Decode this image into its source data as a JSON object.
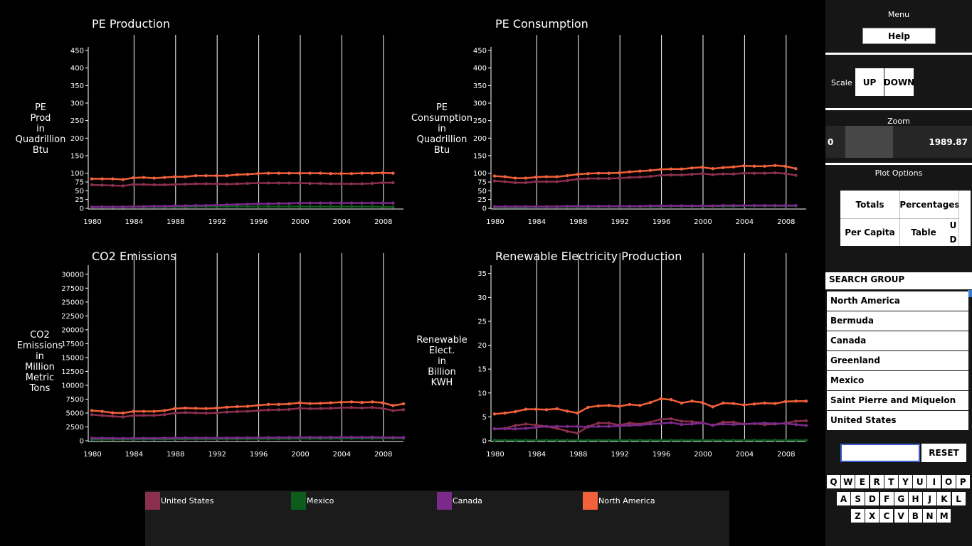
{
  "legend": [
    {
      "label": "United States",
      "color": "#8b2f4f"
    },
    {
      "label": "Mexico",
      "color": "#0c5c1c"
    },
    {
      "label": "Canada",
      "color": "#7a2a8a"
    },
    {
      "label": "North America",
      "color": "#f2613a"
    }
  ],
  "panel": {
    "menu_label": "Menu",
    "help_label": "Help",
    "scale_label": "Scale",
    "up_label": "UP",
    "down_label": "DOWN",
    "zoom_label": "Zoom",
    "zoom_min": "0",
    "zoom_max": "1989.87",
    "plot_options_label": "Plot Options",
    "options": {
      "totals": "Totals",
      "percentages": "Percentages",
      "per_capita": "Per Capita",
      "table": "Table",
      "u": "U",
      "d": "D"
    },
    "search_group_label": "SEARCH GROUP",
    "search_items": [
      "North America",
      "Bermuda",
      "Canada",
      "Greenland",
      "Mexico",
      "Saint Pierre and Miquelon",
      "United States"
    ],
    "search_value": "",
    "reset_label": "RESET",
    "keyboard_rows": [
      [
        "Q",
        "W",
        "E",
        "R",
        "T",
        "Y",
        "U",
        "I",
        "O",
        "P"
      ],
      [
        "A",
        "S",
        "D",
        "F",
        "G",
        "H",
        "J",
        "K",
        "L"
      ],
      [
        "Z",
        "X",
        "C",
        "V",
        "B",
        "N",
        "M"
      ]
    ]
  },
  "chart_data": [
    {
      "type": "line",
      "title": "PE Production",
      "ylabel": [
        "PE",
        "Prod",
        "in",
        "Quadrillion",
        "Btu"
      ],
      "xlim": [
        1980,
        2010
      ],
      "ylim": [
        0,
        450
      ],
      "yticks": [
        0,
        25,
        50,
        75,
        100,
        150,
        200,
        250,
        300,
        350,
        400,
        450
      ],
      "xticks": [
        1980,
        1984,
        1988,
        1992,
        1996,
        2000,
        2004,
        2008
      ],
      "x": [
        1980,
        1981,
        1982,
        1983,
        1984,
        1985,
        1986,
        1987,
        1988,
        1989,
        1990,
        1991,
        1992,
        1993,
        1994,
        1995,
        1996,
        1997,
        1998,
        1999,
        2000,
        2001,
        2002,
        2003,
        2004,
        2005,
        2006,
        2007,
        2008,
        2009
      ],
      "series": [
        {
          "name": "United States",
          "color": "#8b2f4f",
          "values": [
            67,
            66,
            65,
            64,
            68,
            68,
            67,
            67,
            68,
            69,
            70,
            70,
            70,
            69,
            70,
            71,
            72,
            72,
            72,
            72,
            72,
            71,
            71,
            70,
            70,
            70,
            70,
            71,
            73,
            73
          ]
        },
        {
          "name": "Mexico",
          "color": "#0c5c1c",
          "values": [
            3,
            4,
            4,
            4,
            4,
            4,
            4,
            4,
            4,
            4,
            5,
            5,
            5,
            5,
            5,
            5,
            5,
            5,
            5,
            5,
            5,
            5,
            5,
            5,
            5,
            5,
            5,
            5,
            4,
            4
          ]
        },
        {
          "name": "Canada",
          "color": "#7a2a8a",
          "values": [
            4,
            4,
            4,
            4,
            5,
            5,
            6,
            6,
            7,
            7,
            8,
            8,
            9,
            10,
            11,
            12,
            13,
            13,
            14,
            14,
            15,
            15,
            15,
            15,
            15,
            15,
            15,
            15,
            15,
            15
          ]
        },
        {
          "name": "North America",
          "color": "#f2613a",
          "values": [
            84,
            84,
            84,
            82,
            87,
            88,
            86,
            88,
            90,
            90,
            93,
            93,
            93,
            93,
            96,
            97,
            99,
            100,
            100,
            100,
            100,
            100,
            100,
            99,
            99,
            99,
            100,
            100,
            101,
            100
          ]
        }
      ]
    },
    {
      "type": "line",
      "title": "PE Consumption",
      "ylabel": [
        "PE",
        "Consumption",
        "in",
        "Quadrillion",
        "Btu"
      ],
      "xlim": [
        1980,
        2010
      ],
      "ylim": [
        0,
        450
      ],
      "yticks": [
        0,
        25,
        50,
        75,
        100,
        150,
        200,
        250,
        300,
        350,
        400,
        450
      ],
      "xticks": [
        1980,
        1984,
        1988,
        1992,
        1996,
        2000,
        2004,
        2008
      ],
      "x": [
        1980,
        1981,
        1982,
        1983,
        1984,
        1985,
        1986,
        1987,
        1988,
        1989,
        1990,
        1991,
        1992,
        1993,
        1994,
        1995,
        1996,
        1997,
        1998,
        1999,
        2000,
        2001,
        2002,
        2003,
        2004,
        2005,
        2006,
        2007,
        2008,
        2009
      ],
      "series": [
        {
          "name": "United States",
          "color": "#8b2f4f",
          "values": [
            78,
            76,
            73,
            73,
            76,
            76,
            76,
            79,
            83,
            85,
            85,
            85,
            86,
            88,
            89,
            91,
            94,
            95,
            95,
            97,
            99,
            96,
            98,
            98,
            100,
            100,
            100,
            101,
            99,
            94
          ]
        },
        {
          "name": "Mexico",
          "color": "#0c5c1c",
          "values": [
            3,
            3,
            3,
            3,
            4,
            4,
            4,
            4,
            4,
            4,
            5,
            5,
            5,
            5,
            5,
            5,
            5,
            6,
            6,
            6,
            6,
            6,
            6,
            6,
            7,
            7,
            7,
            7,
            7,
            7
          ]
        },
        {
          "name": "Canada",
          "color": "#7a2a8a",
          "values": [
            5,
            5,
            5,
            5,
            5,
            5,
            5,
            6,
            6,
            6,
            6,
            6,
            6,
            6,
            6,
            7,
            7,
            7,
            7,
            7,
            7,
            7,
            8,
            8,
            8,
            8,
            8,
            8,
            8,
            8
          ]
        },
        {
          "name": "North America",
          "color": "#f2613a",
          "values": [
            92,
            90,
            86,
            86,
            89,
            90,
            90,
            93,
            97,
            99,
            100,
            100,
            101,
            104,
            106,
            108,
            111,
            112,
            112,
            115,
            117,
            113,
            116,
            118,
            121,
            120,
            120,
            122,
            120,
            113
          ]
        }
      ]
    },
    {
      "type": "line",
      "title": "CO2 Emissions",
      "ylabel": [
        "CO2",
        "Emissions",
        "in",
        "Million",
        "Metric",
        "Tons"
      ],
      "xlim": [
        1980,
        2010
      ],
      "ylim": [
        0,
        31000
      ],
      "yticks": [
        0,
        2500,
        5000,
        7500,
        10000,
        12500,
        15000,
        17500,
        20000,
        22500,
        25000,
        27500,
        30000
      ],
      "xticks": [
        1980,
        1984,
        1988,
        1992,
        1996,
        2000,
        2004,
        2008
      ],
      "x": [
        1980,
        1981,
        1982,
        1983,
        1984,
        1985,
        1986,
        1987,
        1988,
        1989,
        1990,
        1991,
        1992,
        1993,
        1994,
        1995,
        1996,
        1997,
        1998,
        1999,
        2000,
        2001,
        2002,
        2003,
        2004,
        2005,
        2006,
        2007,
        2008,
        2009,
        2010
      ],
      "series": [
        {
          "name": "United States",
          "color": "#8b2f4f",
          "values": [
            4700,
            4550,
            4400,
            4300,
            4550,
            4570,
            4570,
            4700,
            5000,
            5080,
            5030,
            4980,
            5030,
            5180,
            5260,
            5300,
            5450,
            5560,
            5590,
            5650,
            5860,
            5780,
            5800,
            5860,
            5960,
            5990,
            5920,
            6000,
            5840,
            5430,
            5600
          ]
        },
        {
          "name": "Mexico",
          "color": "#0c5c1c",
          "values": [
            230,
            240,
            245,
            250,
            260,
            265,
            270,
            275,
            285,
            295,
            300,
            305,
            310,
            315,
            320,
            330,
            340,
            350,
            360,
            370,
            380,
            385,
            390,
            395,
            400,
            410,
            420,
            430,
            440,
            450,
            460
          ]
        },
        {
          "name": "Canada",
          "color": "#7a2a8a",
          "values": [
            480,
            470,
            460,
            440,
            460,
            470,
            460,
            480,
            510,
            520,
            520,
            510,
            520,
            520,
            540,
            550,
            560,
            580,
            590,
            600,
            620,
            620,
            620,
            630,
            640,
            640,
            630,
            640,
            620,
            600,
            600
          ]
        },
        {
          "name": "North America",
          "color": "#f2613a",
          "values": [
            5450,
            5300,
            5050,
            5000,
            5300,
            5300,
            5300,
            5450,
            5800,
            5900,
            5850,
            5800,
            5900,
            6050,
            6150,
            6200,
            6400,
            6550,
            6550,
            6650,
            6850,
            6700,
            6750,
            6850,
            6950,
            7000,
            6900,
            7000,
            6850,
            6350,
            6650
          ]
        }
      ]
    },
    {
      "type": "line",
      "title": "Renewable Electricity Production",
      "ylabel": [
        "Renewable",
        "Elect.",
        "in",
        "Billion",
        "KWH"
      ],
      "xlim": [
        1980,
        2010
      ],
      "ylim": [
        0,
        36
      ],
      "yticks": [
        0,
        5,
        10,
        15,
        20,
        25,
        30,
        35
      ],
      "xticks": [
        1980,
        1984,
        1988,
        1992,
        1996,
        2000,
        2004,
        2008
      ],
      "x": [
        1980,
        1981,
        1982,
        1983,
        1984,
        1985,
        1986,
        1987,
        1988,
        1989,
        1990,
        1991,
        1992,
        1993,
        1994,
        1995,
        1996,
        1997,
        1998,
        1999,
        2000,
        2001,
        2002,
        2003,
        2004,
        2005,
        2006,
        2007,
        2008,
        2009,
        2010
      ],
      "series": [
        {
          "name": "United States",
          "color": "#8b2f4f",
          "values": [
            2.5,
            2.6,
            3.2,
            3.5,
            3.3,
            3.0,
            2.6,
            2.0,
            1.6,
            3.0,
            3.7,
            3.7,
            3.3,
            3.7,
            3.5,
            3.9,
            4.5,
            4.6,
            4.1,
            4.0,
            3.8,
            3.2,
            3.9,
            3.9,
            3.5,
            3.6,
            3.4,
            3.5,
            3.7,
            4.1,
            4.2
          ]
        },
        {
          "name": "Mexico",
          "color": "#0c5c1c",
          "values": [
            0.1,
            0.1,
            0.1,
            0.1,
            0.1,
            0.1,
            0.1,
            0.1,
            0.1,
            0.1,
            0.1,
            0.1,
            0.1,
            0.1,
            0.1,
            0.1,
            0.1,
            0.1,
            0.1,
            0.1,
            0.1,
            0.1,
            0.1,
            0.1,
            0.1,
            0.1,
            0.1,
            0.1,
            0.1,
            0.1,
            0.1
          ]
        },
        {
          "name": "Canada",
          "color": "#7a2a8a",
          "values": [
            2.5,
            2.5,
            2.5,
            2.6,
            2.8,
            3.0,
            3.0,
            3.0,
            3.0,
            2.9,
            3.0,
            3.0,
            3.1,
            3.2,
            3.3,
            3.5,
            3.6,
            3.8,
            3.4,
            3.5,
            3.7,
            3.3,
            3.5,
            3.4,
            3.5,
            3.6,
            3.7,
            3.6,
            3.6,
            3.4,
            3.2
          ]
        },
        {
          "name": "North America",
          "color": "#f2613a",
          "values": [
            5.6,
            5.8,
            6.1,
            6.6,
            6.6,
            6.5,
            6.7,
            6.2,
            5.8,
            7.0,
            7.3,
            7.4,
            7.2,
            7.6,
            7.4,
            8.0,
            8.8,
            8.6,
            7.9,
            8.3,
            8.0,
            7.1,
            7.9,
            7.8,
            7.5,
            7.7,
            7.9,
            7.8,
            8.2,
            8.3,
            8.3
          ]
        }
      ]
    }
  ]
}
